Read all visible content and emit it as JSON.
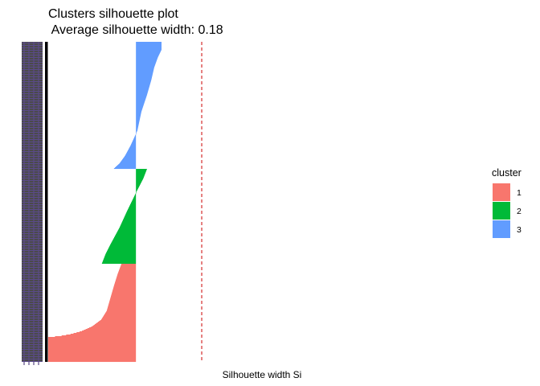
{
  "chart_data": {
    "type": "bar",
    "orientation": "horizontal",
    "title": "Clusters silhouette plot",
    "subtitle": " Average silhouette width: 0.18",
    "xlabel": "Silhouette width Si",
    "ylabel": "",
    "average_silhouette_width": 0.18,
    "xlim": [
      -0.24,
      0.38
    ],
    "grid": false,
    "legend": {
      "title": "cluster",
      "placement": "right",
      "entries": [
        "1",
        "2",
        "3"
      ]
    },
    "colors": {
      "1": "#F8766D",
      "2": "#00BA38",
      "3": "#619CFF",
      "reference_line": "#CC0000"
    },
    "series": [
      {
        "name": "3",
        "profile": [
          [
            0,
            0.07
          ],
          [
            0.06,
            0.07
          ],
          [
            0.12,
            0.06
          ],
          [
            0.2,
            0.05
          ],
          [
            0.3,
            0.042
          ],
          [
            0.42,
            0.03
          ],
          [
            0.55,
            0.015
          ],
          [
            0.7,
            0.004
          ],
          [
            0.82,
            -0.015
          ],
          [
            0.9,
            -0.03
          ],
          [
            0.96,
            -0.045
          ],
          [
            1,
            -0.06
          ]
        ]
      },
      {
        "name": "2",
        "profile": [
          [
            0,
            0.03
          ],
          [
            0.1,
            0.02
          ],
          [
            0.25,
            0.0
          ],
          [
            0.45,
            -0.025
          ],
          [
            0.62,
            -0.045
          ],
          [
            0.8,
            -0.07
          ],
          [
            0.9,
            -0.083
          ],
          [
            1,
            -0.093
          ]
        ]
      },
      {
        "name": "1",
        "profile": [
          [
            0,
            -0.04
          ],
          [
            0.1,
            -0.05
          ],
          [
            0.22,
            -0.06
          ],
          [
            0.35,
            -0.07
          ],
          [
            0.48,
            -0.08
          ],
          [
            0.57,
            -0.095
          ],
          [
            0.64,
            -0.12
          ],
          [
            0.69,
            -0.15
          ],
          [
            0.72,
            -0.18
          ],
          [
            0.74,
            -0.21
          ],
          [
            0.75,
            -0.24
          ],
          [
            1,
            -0.24
          ]
        ]
      }
    ]
  }
}
